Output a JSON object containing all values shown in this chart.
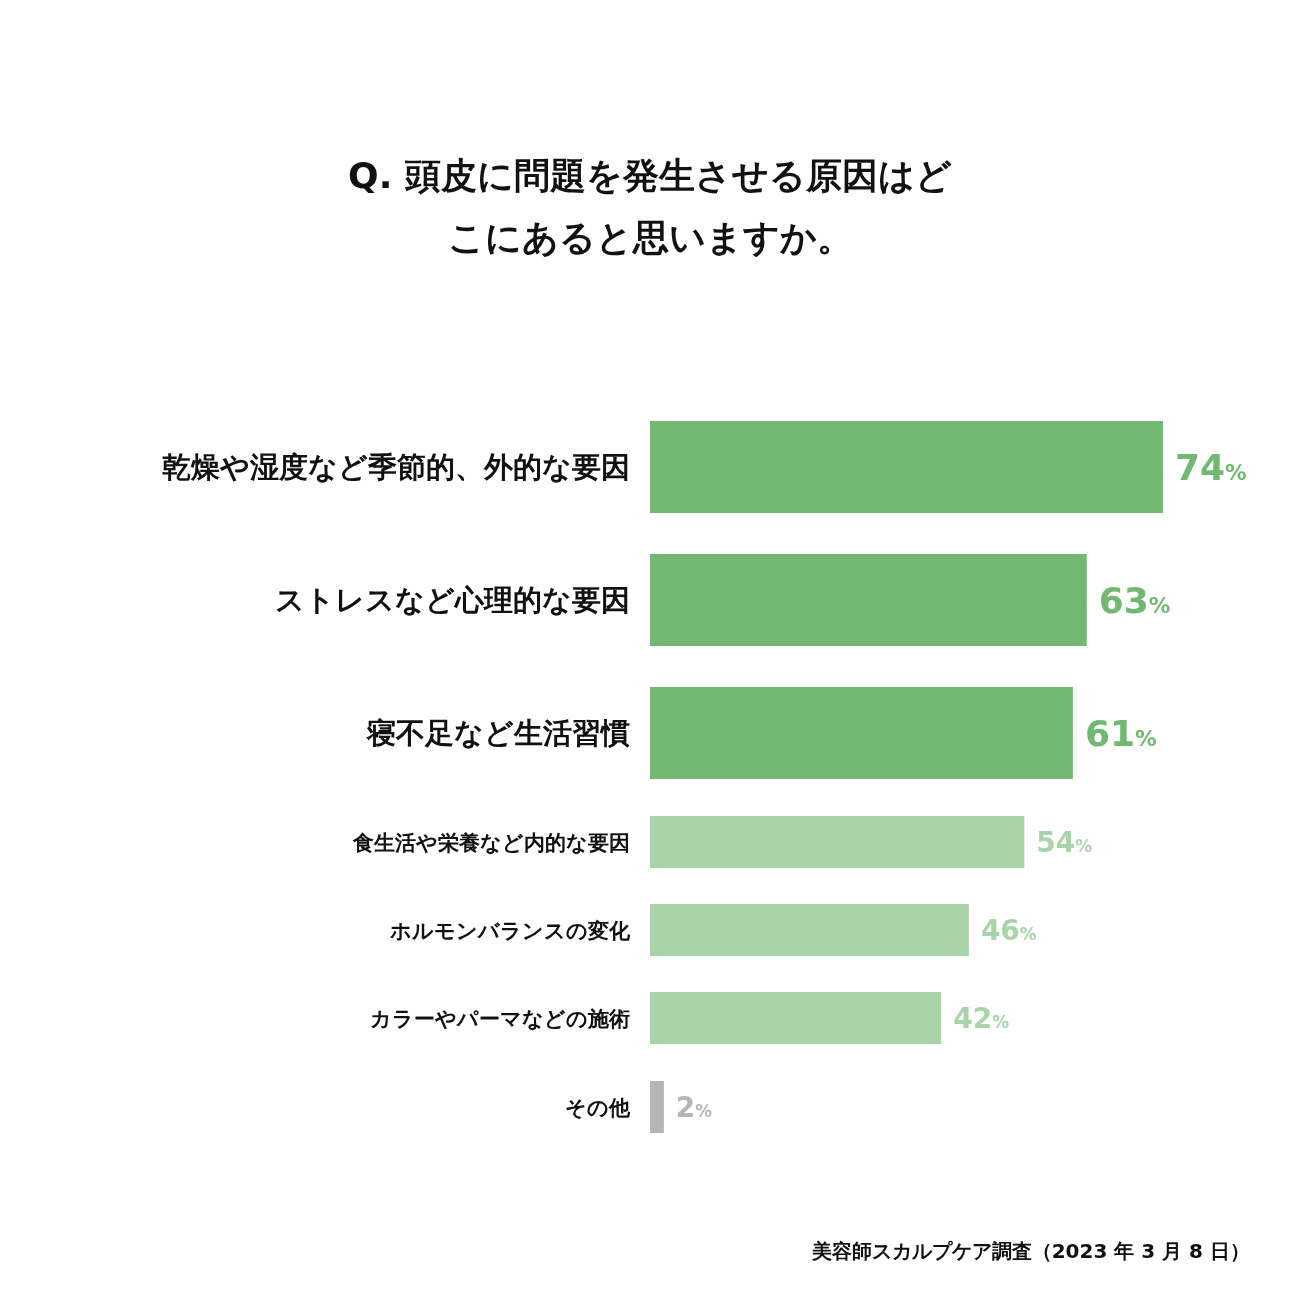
{
  "chart_data": {
    "type": "bar",
    "orientation": "horizontal",
    "title": "Q. 頭皮に問題を発生させる原因はどこにあると思いますか。",
    "categories": [
      "乾燥や湿度など季節的、外的な要因",
      "ストレスなど心理的な要因",
      "寝不足など生活習慣",
      "食生活や栄養など内的な要因",
      "ホルモンバランスの変化",
      "カラーやパーマなどの施術",
      "その他"
    ],
    "values": [
      74,
      63,
      61,
      54,
      46,
      42,
      2
    ],
    "colors": [
      "#72b873",
      "#72b873",
      "#72b873",
      "#a9d3a9",
      "#a9d3a9",
      "#a9d3a9",
      "#b5b5b5"
    ],
    "value_labels": [
      "74%",
      "63%",
      "61%",
      "54%",
      "46%",
      "42%",
      "2%"
    ],
    "annotations": [
      "美容師スカルプケア調査（2023 年 3 月 8 日）"
    ]
  }
}
